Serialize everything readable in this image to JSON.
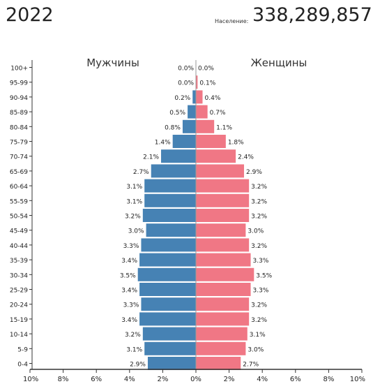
{
  "header": {
    "year": "2022",
    "population_label": "Население:",
    "population_value": "338,289,857"
  },
  "colors": {
    "male": "#4682b4",
    "female": "#f07785",
    "axis": "#333333"
  },
  "chart_data": {
    "type": "bar",
    "orientation": "horizontal-population-pyramid",
    "categories": [
      "100+",
      "95-99",
      "90-94",
      "85-89",
      "80-84",
      "75-79",
      "70-74",
      "65-69",
      "60-64",
      "55-59",
      "50-54",
      "45-49",
      "40-44",
      "35-39",
      "30-34",
      "25-29",
      "20-24",
      "15-19",
      "10-14",
      "5-9",
      "0-4"
    ],
    "series": [
      {
        "name": "Мужчины",
        "values": [
          0.0,
          0.0,
          0.2,
          0.5,
          0.8,
          1.4,
          2.1,
          2.7,
          3.1,
          3.1,
          3.2,
          3.0,
          3.3,
          3.4,
          3.5,
          3.4,
          3.3,
          3.4,
          3.2,
          3.1,
          2.9
        ],
        "labels": [
          "0.0%",
          "0.0%",
          "0.2%",
          "0.5%",
          "0.8%",
          "1.4%",
          "2.1%",
          "2.7%",
          "3.1%",
          "3.1%",
          "3.2%",
          "3.0%",
          "3.3%",
          "3.4%",
          "3.5%",
          "3.4%",
          "3.3%",
          "3.4%",
          "3.2%",
          "3.1%",
          "2.9%"
        ]
      },
      {
        "name": "Женщины",
        "values": [
          0.0,
          0.1,
          0.4,
          0.7,
          1.1,
          1.8,
          2.4,
          2.9,
          3.2,
          3.2,
          3.2,
          3.0,
          3.2,
          3.3,
          3.5,
          3.3,
          3.2,
          3.2,
          3.1,
          3.0,
          2.7
        ],
        "labels": [
          "0.0%",
          "0.1%",
          "0.4%",
          "0.7%",
          "1.1%",
          "1.8%",
          "2.4%",
          "2.9%",
          "3.2%",
          "3.2%",
          "3.2%",
          "3.0%",
          "3.2%",
          "3.3%",
          "3.5%",
          "3.3%",
          "3.2%",
          "3.2%",
          "3.1%",
          "3.0%",
          "2.7%"
        ]
      }
    ],
    "x_ticks": [
      "10%",
      "8%",
      "6%",
      "4%",
      "2%",
      "0%",
      "2%",
      "4%",
      "6%",
      "8%",
      "10%"
    ],
    "xlim": [
      -10,
      10
    ]
  }
}
